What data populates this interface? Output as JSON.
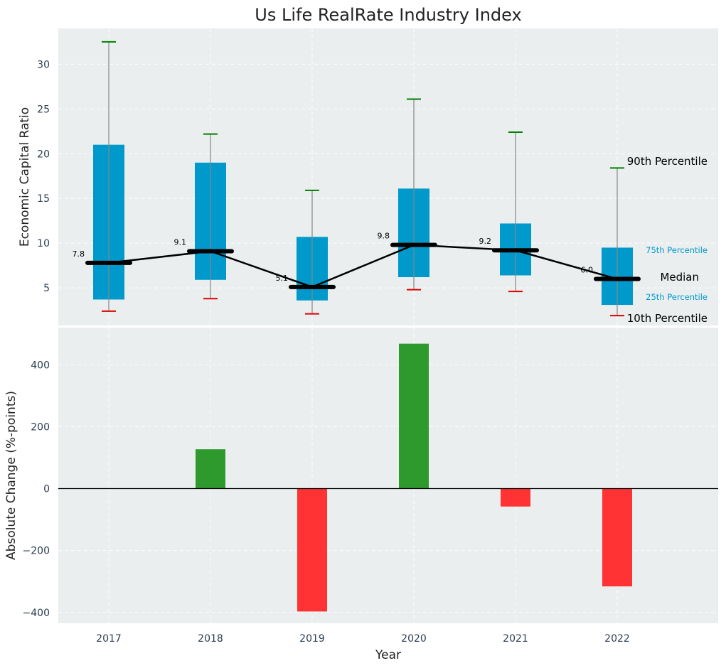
{
  "chart_data": [
    {
      "type": "box-range",
      "title": "Us Life RealRate Industry Index",
      "ylabel": "Economic Capital Ratio",
      "xlabel": "",
      "categories": [
        "2017",
        "2018",
        "2019",
        "2020",
        "2021",
        "2022"
      ],
      "ylim": [
        0.8,
        34.0
      ],
      "yticks": [
        5,
        10,
        15,
        20,
        25,
        30
      ],
      "grid": true,
      "series": [
        {
          "name": "90th Percentile",
          "values": [
            32.5,
            22.2,
            15.9,
            26.1,
            22.4,
            18.4
          ]
        },
        {
          "name": "75th Percentile",
          "values": [
            21.0,
            19.0,
            10.7,
            16.1,
            12.2,
            9.5
          ]
        },
        {
          "name": "Median",
          "values": [
            7.8,
            9.1,
            5.1,
            9.8,
            9.2,
            6.0
          ]
        },
        {
          "name": "25th Percentile",
          "values": [
            3.7,
            5.9,
            3.6,
            6.2,
            6.4,
            3.1
          ]
        },
        {
          "name": "10th Percentile",
          "values": [
            2.4,
            3.8,
            2.1,
            4.8,
            4.6,
            1.9
          ]
        }
      ],
      "median_labels": [
        "7.8",
        "9.1",
        "5.1",
        "9.8",
        "9.2",
        "6.0"
      ],
      "annotations": [
        "90th Percentile",
        "75th Percentile",
        "Median",
        "25th Percentile",
        "10th Percentile"
      ],
      "colors": {
        "box": "#0099cc",
        "p90_cap": "#008000",
        "p10_cap": "#e00000",
        "median": "#000000",
        "whisker": "#888888"
      }
    },
    {
      "type": "bar",
      "xlabel": "Year",
      "ylabel": "Absolute Change (%-points)",
      "categories": [
        "2017",
        "2018",
        "2019",
        "2020",
        "2021",
        "2022"
      ],
      "values": [
        0,
        127,
        -397,
        468,
        -58,
        -316
      ],
      "ylim": [
        -435,
        520
      ],
      "yticks": [
        -400,
        -200,
        0,
        200,
        400
      ],
      "tick_labels": [
        "−400",
        "−200",
        "0",
        "200",
        "400"
      ],
      "grid": true,
      "colors": {
        "positive": "#2e9a2e",
        "negative": "#ff3333",
        "zero_line": "#000000"
      }
    }
  ]
}
